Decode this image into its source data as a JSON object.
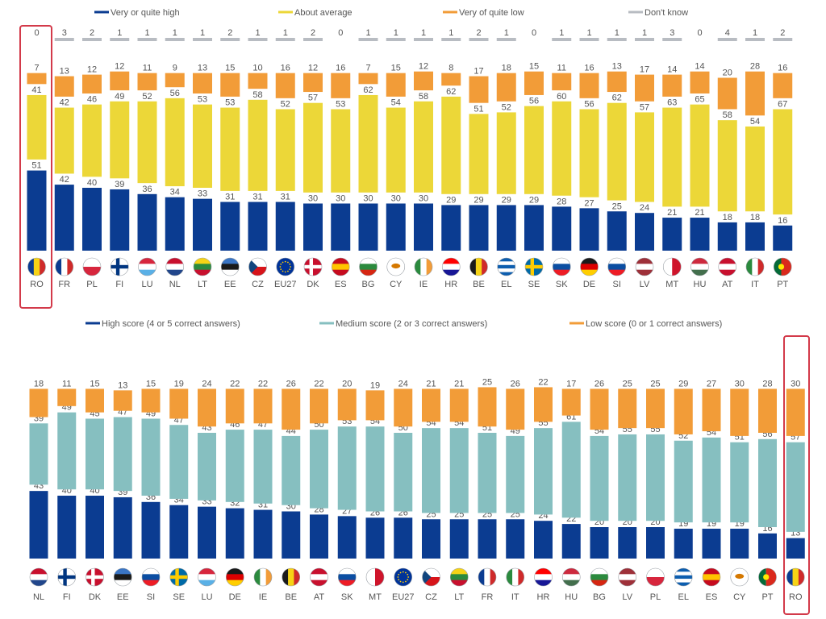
{
  "chart_data": [
    {
      "type": "bar",
      "stacked": true,
      "legend_position": "top",
      "grid": false,
      "highlight": "RO",
      "categories": [
        "RO",
        "FR",
        "PL",
        "FI",
        "LU",
        "NL",
        "LT",
        "EE",
        "CZ",
        "EU27",
        "DK",
        "ES",
        "BG",
        "CY",
        "IE",
        "HR",
        "BE",
        "EL",
        "SE",
        "SK",
        "DE",
        "SI",
        "LV",
        "MT",
        "HU",
        "AT",
        "IT",
        "PT"
      ],
      "series": [
        {
          "name": "Very or quite high",
          "color": "#0b3c91",
          "values": [
            51,
            42,
            40,
            39,
            36,
            34,
            33,
            31,
            31,
            31,
            30,
            30,
            30,
            30,
            30,
            29,
            29,
            29,
            29,
            28,
            27,
            25,
            24,
            21,
            21,
            18,
            18,
            16
          ]
        },
        {
          "name": "About average",
          "color": "#ecd738",
          "values": [
            41,
            42,
            46,
            49,
            52,
            56,
            53,
            53,
            58,
            52,
            57,
            53,
            62,
            54,
            58,
            62,
            51,
            52,
            56,
            60,
            56,
            62,
            57,
            63,
            65,
            58,
            54,
            67
          ]
        },
        {
          "name": "Very of quite low",
          "color": "#f29c38",
          "values": [
            7,
            13,
            12,
            12,
            11,
            9,
            13,
            15,
            10,
            16,
            12,
            16,
            7,
            15,
            12,
            8,
            17,
            18,
            15,
            11,
            16,
            13,
            17,
            14,
            14,
            20,
            28,
            16
          ]
        },
        {
          "name": "Don't know",
          "color": "#b8bcc2",
          "values": [
            0,
            3,
            2,
            1,
            1,
            1,
            1,
            2,
            1,
            1,
            2,
            0,
            1,
            1,
            1,
            1,
            2,
            1,
            0,
            1,
            1,
            1,
            1,
            3,
            0,
            4,
            1,
            2
          ]
        }
      ]
    },
    {
      "type": "bar",
      "stacked": true,
      "legend_position": "top",
      "grid": false,
      "highlight": "RO",
      "categories": [
        "NL",
        "FI",
        "DK",
        "EE",
        "SI",
        "SE",
        "LU",
        "DE",
        "IE",
        "BE",
        "AT",
        "SK",
        "MT",
        "EU27",
        "CZ",
        "LT",
        "FR",
        "IT",
        "HR",
        "HU",
        "BG",
        "LV",
        "PL",
        "EL",
        "ES",
        "CY",
        "PT",
        "RO"
      ],
      "series": [
        {
          "name": "High score (4 or 5 correct answers)",
          "color": "#0b3c91",
          "values": [
            43,
            40,
            40,
            39,
            36,
            34,
            33,
            32,
            31,
            30,
            28,
            27,
            26,
            26,
            25,
            25,
            25,
            25,
            24,
            22,
            20,
            20,
            20,
            19,
            19,
            19,
            16,
            13
          ]
        },
        {
          "name": "Medium score (2 or 3 correct answers)",
          "color": "#86bfc0",
          "values": [
            39,
            49,
            45,
            47,
            49,
            47,
            43,
            46,
            47,
            44,
            50,
            53,
            54,
            50,
            54,
            54,
            51,
            49,
            55,
            61,
            54,
            55,
            55,
            52,
            54,
            51,
            56,
            57
          ]
        },
        {
          "name": "Low score (0 or 1 correct answers)",
          "color": "#f29c38",
          "values": [
            18,
            11,
            15,
            13,
            15,
            19,
            24,
            22,
            22,
            26,
            22,
            20,
            19,
            24,
            21,
            21,
            25,
            26,
            22,
            17,
            26,
            25,
            25,
            29,
            27,
            30,
            28,
            30
          ]
        }
      ]
    }
  ],
  "flags": {
    "RO": [
      "#0b3c91",
      "#f6d316",
      "#cf2a2a"
    ],
    "FR": [
      "#0b3c91",
      "#ffffff",
      "#cf2a2a"
    ],
    "IT": [
      "#2b8a3e",
      "#ffffff",
      "#cf2a2a"
    ],
    "BE": [
      "#1a1a1a",
      "#f6d316",
      "#cf2a2a"
    ],
    "IE": [
      "#2b8a3e",
      "#ffffff",
      "#f29c38"
    ],
    "PL": [
      "#ffffff",
      "#d7263d"
    ],
    "LU": [
      "#d7263d",
      "#ffffff",
      "#5ab0e6"
    ],
    "NL": [
      "#c8102e",
      "#ffffff",
      "#21468b"
    ],
    "LT": [
      "#f6d316",
      "#2b8a3e",
      "#c8102e"
    ],
    "EE": [
      "#3a75c4",
      "#1a1a1a",
      "#ffffff"
    ],
    "DE": [
      "#1a1a1a",
      "#dd0000",
      "#ffce00"
    ],
    "HU": [
      "#cd2a3e",
      "#ffffff",
      "#436f4d"
    ],
    "BG": [
      "#ffffff",
      "#2b8a3e",
      "#d62612"
    ],
    "AT": [
      "#c8102e",
      "#ffffff",
      "#c8102e"
    ],
    "LV": [
      "#9e3039",
      "#ffffff",
      "#9e3039"
    ],
    "ES": [
      "#c60b1e",
      "#ffc400",
      "#c60b1e"
    ],
    "SK": [
      "#ffffff",
      "#0b4ea2",
      "#ee1c25"
    ],
    "SI": [
      "#ffffff",
      "#0b4ea2",
      "#ee1c25"
    ],
    "HR": [
      "#ff0000",
      "#ffffff",
      "#171796"
    ],
    "FI": [
      "#ffffff",
      "#003580"
    ],
    "SE": [
      "#006aa7",
      "#fecc00"
    ],
    "DK": [
      "#c8102e",
      "#ffffff"
    ],
    "CZ": [
      "#ffffff",
      "#d7141a",
      "#11457e"
    ],
    "EL": [
      "#0d5eaf",
      "#ffffff"
    ],
    "MT": [
      "#ffffff",
      "#cf142b"
    ],
    "CY": [
      "#ffffff",
      "#d57800"
    ],
    "PT": [
      "#046a38",
      "#da291c",
      "#ffe900"
    ],
    "EU27": [
      "#003399",
      "#ffcc00"
    ]
  }
}
